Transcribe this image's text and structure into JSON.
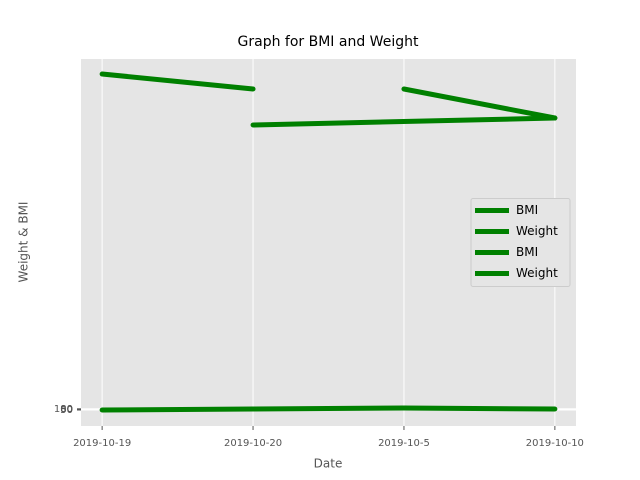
{
  "chart_data": {
    "type": "line",
    "title": "Graph for BMI and Weight",
    "x_label": "Date",
    "y_label": "Weight & BMI",
    "categories": [
      "2019-10-19",
      "2019-10-20",
      "2019-10-5",
      "2019-10-10"
    ],
    "xlim": [
      -0.14,
      3.14
    ],
    "ylim": [
      -40,
      877.5
    ],
    "yticks": [
      {
        "value": 0,
        "label": "50"
      },
      {
        "value": 1,
        "label": "60"
      },
      {
        "value": 2,
        "label": "80"
      },
      {
        "value": 3,
        "label": "100"
      }
    ],
    "grid": true,
    "legend": "center right",
    "series": [
      {
        "name": "BMI",
        "color": "#008000",
        "x": [
          "2019-10-19",
          "2019-10-20"
        ],
        "values": [
          840,
          802.5
        ]
      },
      {
        "name": "Weight",
        "color": "#008000",
        "x": [
          "2019-10-19",
          "2019-10-20",
          "2019-10-5",
          "2019-10-10"
        ],
        "values": [
          0,
          2.5,
          5,
          2.5
        ]
      },
      {
        "name": "BMI",
        "color": "#008000",
        "x": [
          "2019-10-5",
          "2019-10-10"
        ],
        "values": [
          802.5,
          730
        ]
      },
      {
        "name": "Weight",
        "color": "#008000",
        "x": [
          "2019-10-20",
          "2019-10-10"
        ],
        "values": [
          712.5,
          730
        ]
      }
    ]
  }
}
